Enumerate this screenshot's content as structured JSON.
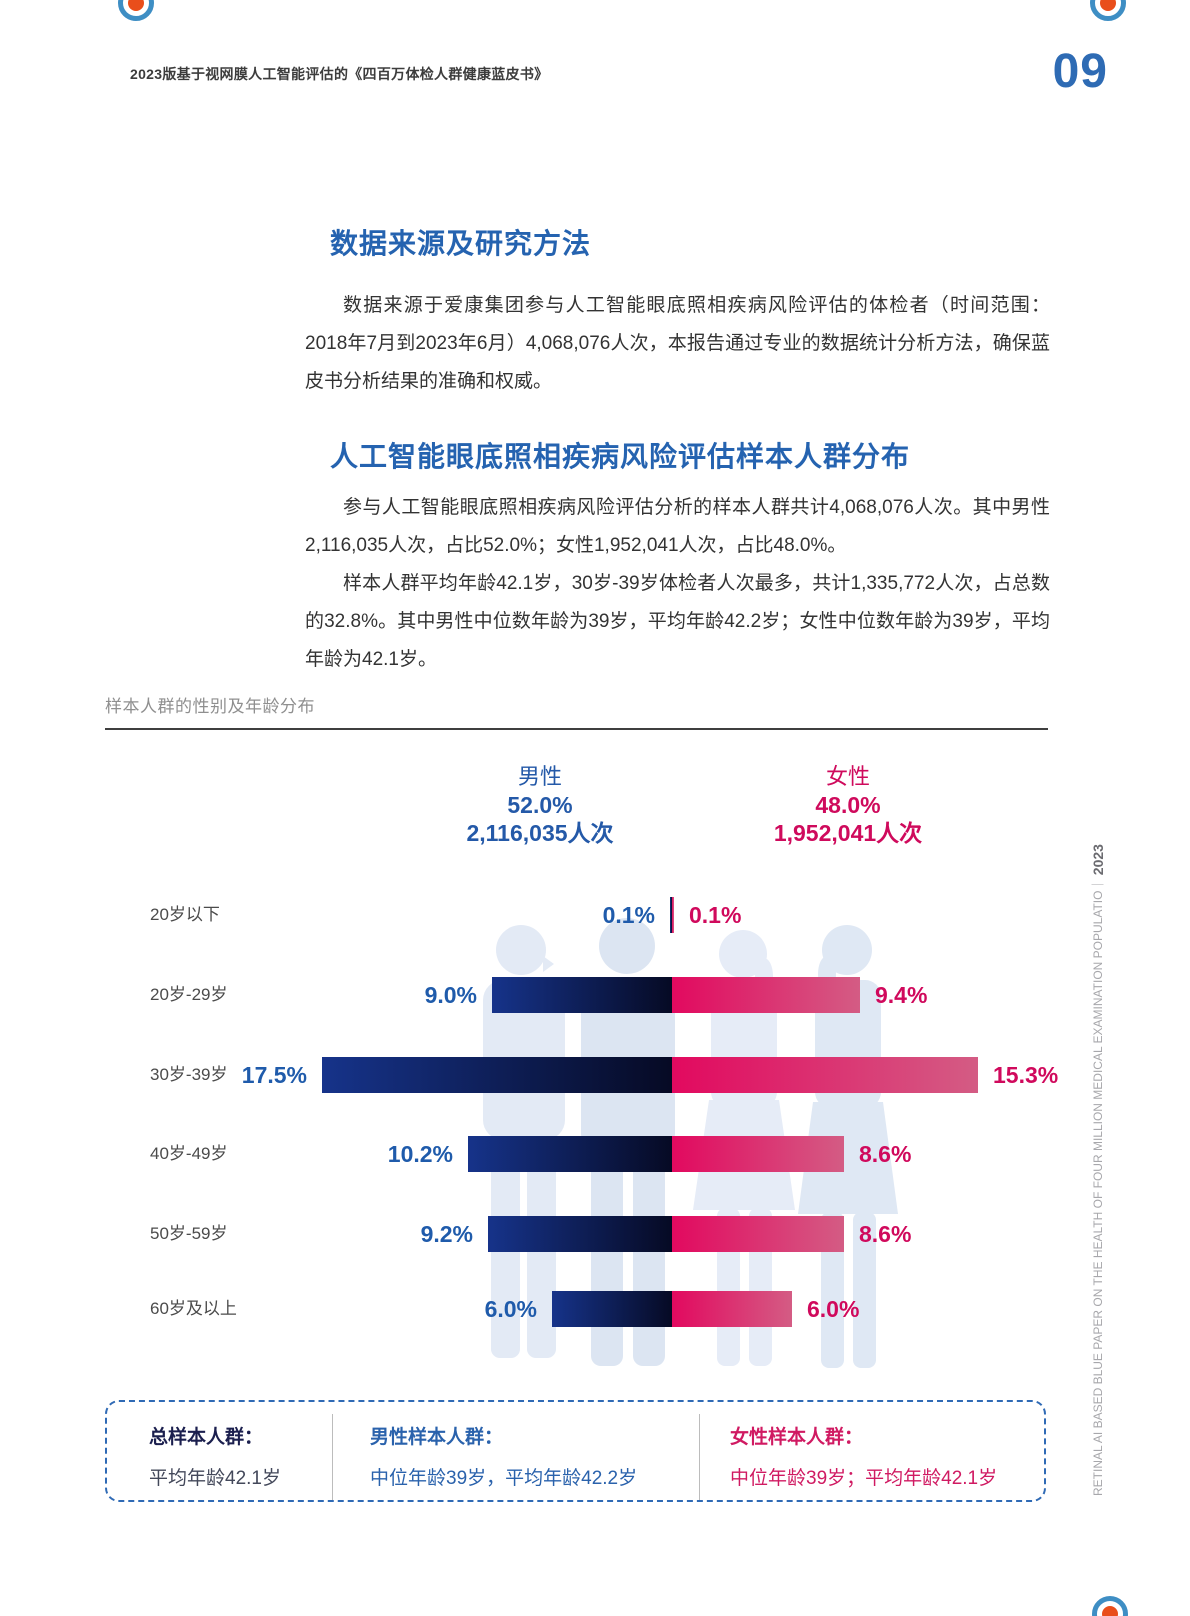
{
  "page": {
    "header_title": "2023版基于视网膜人工智能评估的《四百万体检人群健康蓝皮书》",
    "page_number": "09",
    "side_text": "RETINAL AI BASED BLUE PAPER ON THE HEALTH OF FOUR MILLION MEDICAL EXAMINATION POPULATIO｜ ",
    "side_text_year": "2023"
  },
  "sections": [
    {
      "heading": "数据来源及研究方法",
      "paragraphs": [
        "数据来源于爱康集团参与人工智能眼底照相疾病风险评估的体检者（时间范围：2018年7月到2023年6月）4,068,076人次，本报告通过专业的数据统计分析方法，确保蓝皮书分析结果的准确和权威。"
      ]
    },
    {
      "heading": "人工智能眼底照相疾病风险评估样本人群分布",
      "paragraphs": [
        "参与人工智能眼底照相疾病风险评估分析的样本人群共计4,068,076人次。其中男性2,116,035人次，占比52.0%；女性1,952,041人次，占比48.0%。",
        "样本人群平均年龄42.1岁，30岁-39岁体检者人次最多，共计1,335,772人次，占总数的32.8%。其中男性中位数年龄为39岁，平均年龄42.2岁；女性中位数年龄为39岁，平均年龄为42.1岁。"
      ]
    }
  ],
  "chart_data": {
    "type": "bar",
    "subtype": "butterfly-diverging-horizontal",
    "title": "样本人群的性别及年龄分布",
    "unit": "%",
    "categories": [
      "20岁以下",
      "20岁-29岁",
      "30岁-39岁",
      "40岁-49岁",
      "50岁-59岁",
      "60岁及以上"
    ],
    "series": [
      {
        "name": "男性",
        "share": "52.0%",
        "count_label": "2,116,035人次",
        "values": [
          0.1,
          9.0,
          17.5,
          10.2,
          9.2,
          6.0
        ],
        "labels": [
          "0.1%",
          "9.0%",
          "17.5%",
          "10.2%",
          "9.2%",
          "6.0%"
        ]
      },
      {
        "name": "女性",
        "share": "48.0%",
        "count_label": "1,952,041人次",
        "values": [
          0.1,
          9.4,
          15.3,
          8.6,
          8.6,
          6.0
        ],
        "labels": [
          "0.1%",
          "9.4%",
          "15.3%",
          "8.6%",
          "8.6%",
          "6.0%"
        ]
      }
    ],
    "axis_note": "bars diverge from center; male left, female right",
    "legend_position": "top"
  },
  "summary_box": {
    "total": {
      "label": "总样本人群：",
      "value": "平均年龄42.1岁"
    },
    "male": {
      "label": "男性样本人群：",
      "value": "中位年龄39岁，平均年龄42.2岁"
    },
    "female": {
      "label": "女性样本人群：",
      "value": "中位年龄39岁；平均年龄42.1岁"
    }
  },
  "colors": {
    "accent_blue": "#2563b0",
    "male_blue": "#1f5bab",
    "female_pink": "#d0095c",
    "bar_male_gradient": [
      "#16338a",
      "#060a24"
    ],
    "bar_female_gradient": [
      "#e2095f",
      "#d45c84"
    ],
    "logo_ring": "#3e8ec4",
    "logo_dot": "#e94e1b",
    "silhouette": "#e3eaf5"
  }
}
